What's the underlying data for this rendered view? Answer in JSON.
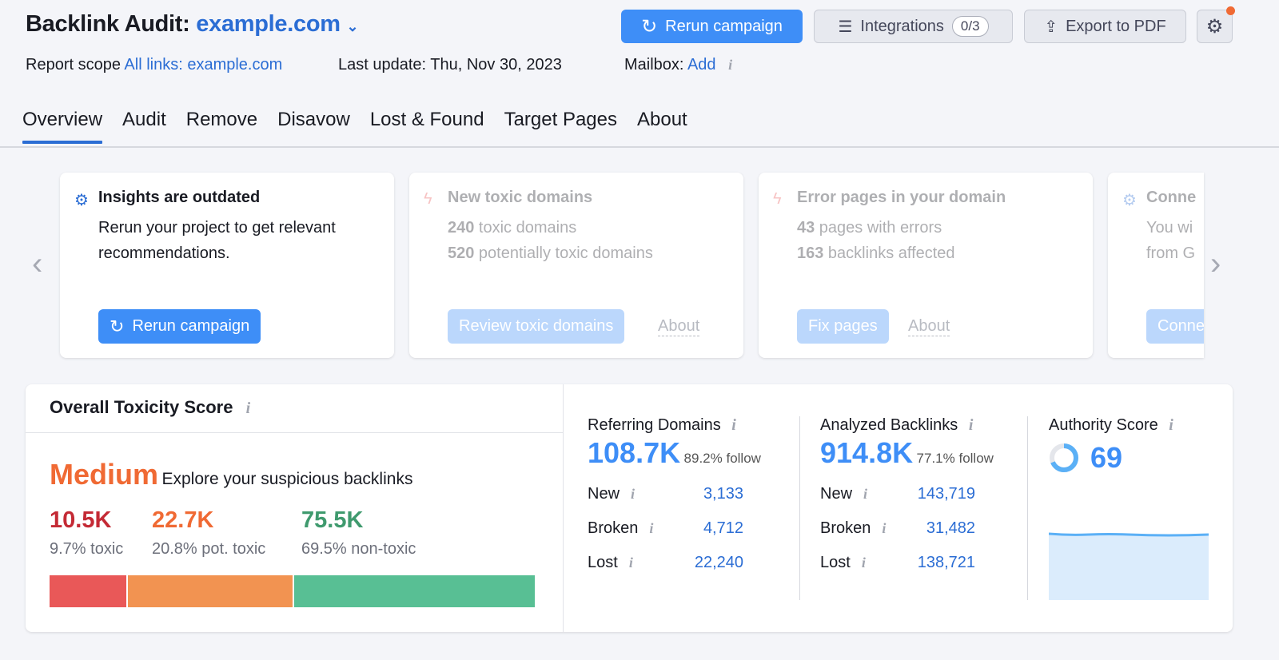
{
  "header": {
    "title": "Backlink Audit:",
    "domain": "example.com",
    "report_scope_label": "Report scope",
    "report_scope_value": "All links: example.com",
    "last_update": "Last update: Thu, Nov 30, 2023",
    "mailbox_label": "Mailbox:",
    "mailbox_value": "Add"
  },
  "toolbar": {
    "rerun": "Rerun campaign",
    "integrations": "Integrations",
    "integrations_count": "0/3",
    "export": "Export to PDF"
  },
  "tabs": [
    "Overview",
    "Audit",
    "Remove",
    "Disavow",
    "Lost & Found",
    "Target Pages",
    "About"
  ],
  "cards": [
    {
      "title": "Insights are outdated",
      "text": "Rerun your project to get relevant recommendations.",
      "button": "Rerun campaign"
    },
    {
      "title": "New toxic domains",
      "l1n": "240",
      "l1": " toxic domains",
      "l2n": "520",
      "l2": " potentially toxic domains",
      "button": "Review toxic domains",
      "about": "About"
    },
    {
      "title": "Error pages in your domain",
      "l1n": "43",
      "l1": " pages with errors",
      "l2n": "163",
      "l2": " backlinks affected",
      "button": "Fix pages",
      "about": "About"
    },
    {
      "title": "Conne",
      "l1": "You wi",
      "l2": "from G",
      "button": "Conne"
    }
  ],
  "toxicity": {
    "title": "Overall Toxicity Score",
    "level": "Medium",
    "subtitle": "Explore your suspicious backlinks",
    "level_color": "#f06a34",
    "segments": [
      {
        "value": "10.5K",
        "label": "9.7% toxic",
        "color": "#e95858",
        "text_color": "#c42a35",
        "pct": 9.7
      },
      {
        "value": "22.7K",
        "label": "20.8% pot. toxic",
        "color": "#f29351",
        "text_color": "#f06a34",
        "pct": 20.8
      },
      {
        "value": "75.5K",
        "label": "69.5% non-toxic",
        "color": "#58bf94",
        "text_color": "#3f9a6e",
        "pct": 69.5
      }
    ]
  },
  "referring": {
    "title": "Referring Domains",
    "value": "108.7K",
    "follow": "89.2% follow",
    "rows": [
      {
        "label": "New",
        "value": "3,133"
      },
      {
        "label": "Broken",
        "value": "4,712"
      },
      {
        "label": "Lost",
        "value": "22,240"
      }
    ]
  },
  "backlinks": {
    "title": "Analyzed Backlinks",
    "value": "914.8K",
    "follow": "77.1% follow",
    "rows": [
      {
        "label": "New",
        "value": "143,719"
      },
      {
        "label": "Broken",
        "value": "31,482"
      },
      {
        "label": "Lost",
        "value": "138,721"
      }
    ]
  },
  "authority": {
    "title": "Authority Score",
    "value": "69"
  },
  "info_glyph": "i"
}
